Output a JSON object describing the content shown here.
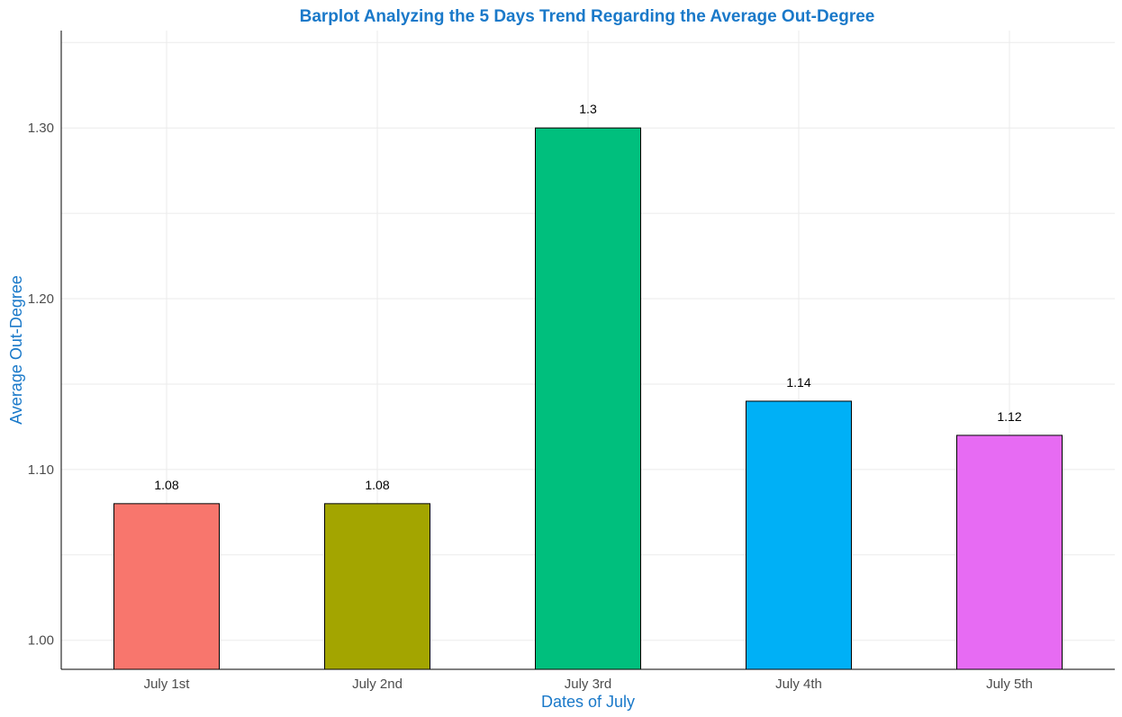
{
  "chart_data": {
    "type": "bar",
    "title": "Barplot Analyzing the 5 Days Trend Regarding the Average Out-Degree",
    "xlabel": "Dates of July",
    "ylabel": "Average Out-Degree",
    "categories": [
      "July 1st",
      "July 2nd",
      "July 3rd",
      "July 4th",
      "July 5th"
    ],
    "values": [
      1.08,
      1.08,
      1.3,
      1.14,
      1.12
    ],
    "value_labels": [
      "1.08",
      "1.08",
      "1.3",
      "1.14",
      "1.12"
    ],
    "colors": [
      "#F8766D",
      "#A3A500",
      "#00BF7D",
      "#00B0F6",
      "#E76BF3"
    ],
    "yticks": [
      1.0,
      1.1,
      1.2,
      1.3
    ],
    "ytick_labels": [
      "1.00",
      "1.10",
      "1.20",
      "1.30"
    ],
    "ylim": [
      0.983,
      1.357
    ],
    "grid": true,
    "legend": "none"
  },
  "theme": {
    "title_color": "#1A79C9",
    "axis_title_color": "#1A79C9",
    "grid_color": "#EBEBEB",
    "bar_outline_color": "#000000",
    "axis_line_color": "#000000"
  }
}
